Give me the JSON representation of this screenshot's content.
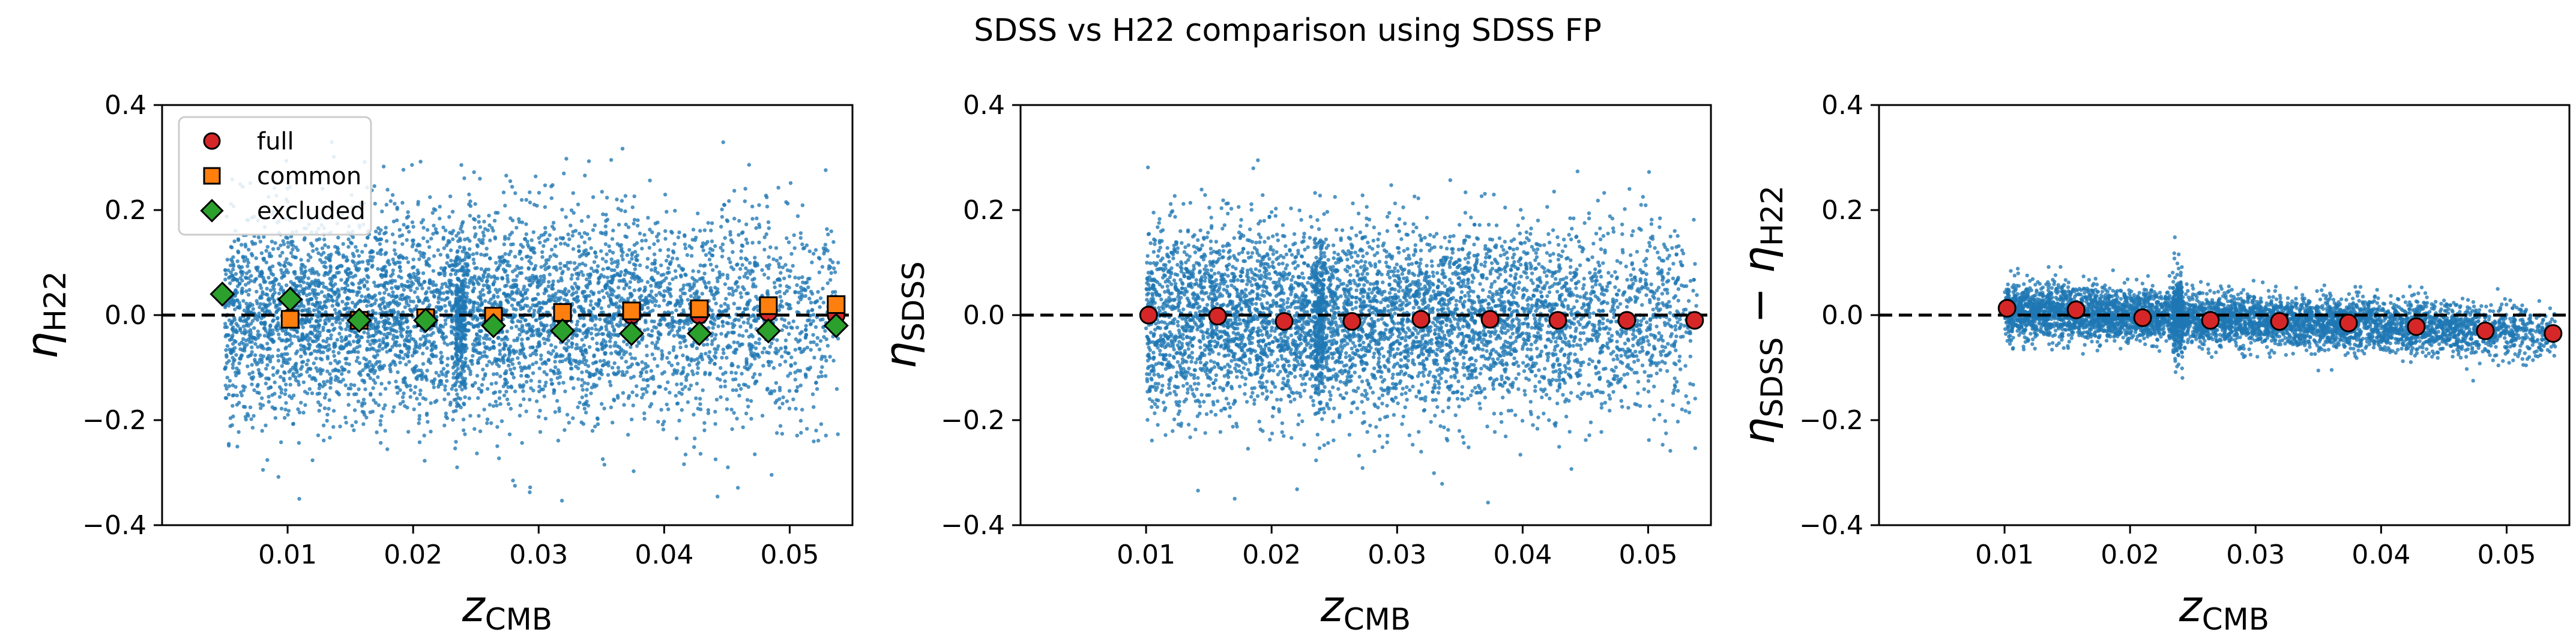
{
  "figure": {
    "suptitle": "SDSS vs H22 comparison using SDSS FP"
  },
  "colors": {
    "scatter": "#1f77b4",
    "full": "#d62728",
    "common": "#ff7f0e",
    "excluded": "#2ca02c",
    "zero_line": "#000000"
  },
  "chart_data": [
    {
      "type": "scatter",
      "panel": "left",
      "xlabel_main": "z",
      "xlabel_sub": "CMB",
      "ylabel_main": "η",
      "ylabel_sub": "H22",
      "xlim": [
        0.0,
        0.055
      ],
      "ylim": [
        -0.4,
        0.4
      ],
      "xticks": [
        0.01,
        0.02,
        0.03,
        0.04,
        0.05
      ],
      "xtick_labels": [
        "0.01",
        "0.02",
        "0.03",
        "0.04",
        "0.05"
      ],
      "yticks": [
        -0.4,
        -0.2,
        0.0,
        0.2,
        0.4
      ],
      "ytick_labels": [
        "−0.4",
        "−0.2",
        "0.0",
        "0.2",
        "0.4"
      ],
      "reference_line": 0.0,
      "legend": {
        "placement": "upper-left",
        "entries": [
          "full",
          "common",
          "excluded"
        ]
      },
      "scatter_cloud": {
        "color": "#1f77b4",
        "x_range": [
          0.005,
          0.054
        ],
        "mean": 0.0,
        "spread": 0.1,
        "y_range": [
          -0.37,
          0.36
        ]
      },
      "series": [
        {
          "name": "full",
          "marker": "circle",
          "x": [
            0.0102,
            0.0157,
            0.021,
            0.0264,
            0.0319,
            0.0374,
            0.0428,
            0.0483,
            0.0537
          ],
          "y": [
            -0.005,
            -0.01,
            -0.005,
            -0.005,
            0.0,
            0.0,
            0.0,
            0.005,
            0.0
          ]
        },
        {
          "name": "common",
          "marker": "square",
          "x": [
            0.0102,
            0.0157,
            0.021,
            0.0264,
            0.0319,
            0.0374,
            0.0428,
            0.0483,
            0.0537
          ],
          "y": [
            -0.008,
            -0.01,
            -0.005,
            -0.002,
            0.005,
            0.008,
            0.012,
            0.018,
            0.02
          ]
        },
        {
          "name": "excluded",
          "marker": "diamond",
          "x": [
            0.0048,
            0.0102,
            0.0157,
            0.021,
            0.0264,
            0.0319,
            0.0374,
            0.0428,
            0.0483,
            0.0537
          ],
          "y": [
            0.04,
            0.03,
            -0.01,
            -0.01,
            -0.02,
            -0.03,
            -0.035,
            -0.035,
            -0.03,
            -0.02
          ]
        }
      ]
    },
    {
      "type": "scatter",
      "panel": "middle",
      "xlabel_main": "z",
      "xlabel_sub": "CMB",
      "ylabel_main": "η",
      "ylabel_sub": "SDSS",
      "xlim": [
        0.0,
        0.055
      ],
      "ylim": [
        -0.4,
        0.4
      ],
      "xticks": [
        0.01,
        0.02,
        0.03,
        0.04,
        0.05
      ],
      "xtick_labels": [
        "0.01",
        "0.02",
        "0.03",
        "0.04",
        "0.05"
      ],
      "yticks": [
        -0.4,
        -0.2,
        0.0,
        0.2,
        0.4
      ],
      "ytick_labels": [
        "−0.4",
        "−0.2",
        "0.0",
        "0.2",
        "0.4"
      ],
      "reference_line": 0.0,
      "scatter_cloud": {
        "color": "#1f77b4",
        "x_range": [
          0.01,
          0.054
        ],
        "mean": -0.01,
        "spread": 0.09,
        "y_range": [
          -0.36,
          0.31
        ]
      },
      "series": [
        {
          "name": "full",
          "marker": "circle",
          "x": [
            0.0102,
            0.0157,
            0.021,
            0.0264,
            0.0319,
            0.0374,
            0.0428,
            0.0483,
            0.0537
          ],
          "y": [
            0.0,
            -0.002,
            -0.012,
            -0.012,
            -0.008,
            -0.008,
            -0.01,
            -0.01,
            -0.01
          ]
        }
      ]
    },
    {
      "type": "scatter",
      "panel": "right",
      "xlabel_main": "z",
      "xlabel_sub": "CMB",
      "ylabel_main": "η",
      "ylabel_sub": "SDSS",
      "ylabel_minus": "−",
      "ylabel_main2": "η",
      "ylabel_sub2": "H22",
      "xlim": [
        0.0,
        0.055
      ],
      "ylim": [
        -0.4,
        0.4
      ],
      "xticks": [
        0.01,
        0.02,
        0.03,
        0.04,
        0.05
      ],
      "xtick_labels": [
        "0.01",
        "0.02",
        "0.03",
        "0.04",
        "0.05"
      ],
      "yticks": [
        -0.4,
        -0.2,
        0.0,
        0.2,
        0.4
      ],
      "ytick_labels": [
        "−0.4",
        "−0.2",
        "0.0",
        "0.2",
        "0.4"
      ],
      "reference_line": 0.0,
      "scatter_cloud": {
        "color": "#1f77b4",
        "x_range": [
          0.01,
          0.054
        ],
        "mean": -0.015,
        "spread": 0.025,
        "y_range": [
          -0.22,
          0.27
        ]
      },
      "series": [
        {
          "name": "full",
          "marker": "circle",
          "x": [
            0.0102,
            0.0157,
            0.021,
            0.0264,
            0.0319,
            0.0374,
            0.0428,
            0.0483,
            0.0537
          ],
          "y": [
            0.013,
            0.01,
            -0.005,
            -0.01,
            -0.012,
            -0.015,
            -0.022,
            -0.03,
            -0.035
          ]
        }
      ]
    }
  ]
}
